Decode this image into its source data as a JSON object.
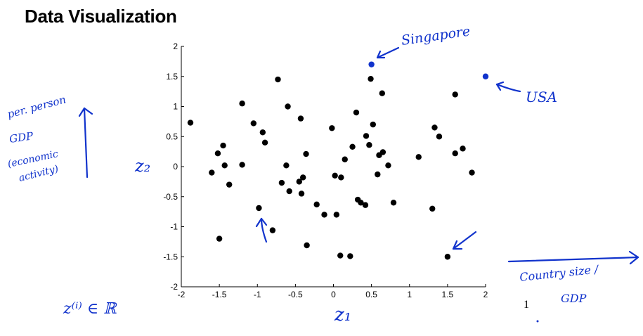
{
  "slide": {
    "title": "Data Visualization"
  },
  "chart_data": {
    "type": "scatter",
    "xlim": [
      -2,
      2
    ],
    "ylim": [
      -2,
      2
    ],
    "xticks": [
      "-2",
      "-1.5",
      "-1",
      "-0.5",
      "0",
      "0.5",
      "1",
      "1.5",
      "2"
    ],
    "yticks": [
      "2",
      "1.5",
      "1",
      "0.5",
      "0",
      "-0.5",
      "-1",
      "-1.5",
      "-2"
    ],
    "grid": false,
    "series": [
      {
        "color": "#000000",
        "points": [
          [
            -1.88,
            0.73
          ],
          [
            -1.6,
            -0.1
          ],
          [
            -1.52,
            0.22
          ],
          [
            -1.5,
            -1.2
          ],
          [
            -1.45,
            0.35
          ],
          [
            -1.43,
            0.02
          ],
          [
            -1.37,
            -0.3
          ],
          [
            -1.2,
            0.03
          ],
          [
            -1.2,
            1.05
          ],
          [
            -1.05,
            0.72
          ],
          [
            -0.98,
            -0.69
          ],
          [
            -0.93,
            0.57
          ],
          [
            -0.9,
            0.4
          ],
          [
            -0.8,
            -1.06
          ],
          [
            -0.73,
            1.45
          ],
          [
            -0.68,
            -0.27
          ],
          [
            -0.62,
            0.02
          ],
          [
            -0.6,
            1.0
          ],
          [
            -0.58,
            -0.41
          ],
          [
            -0.45,
            -0.25
          ],
          [
            -0.43,
            0.8
          ],
          [
            -0.42,
            -0.45
          ],
          [
            -0.4,
            -0.18
          ],
          [
            -0.36,
            0.21
          ],
          [
            -0.35,
            -1.31
          ],
          [
            -0.22,
            -0.63
          ],
          [
            -0.12,
            -0.8
          ],
          [
            -0.02,
            0.64
          ],
          [
            0.02,
            -0.15
          ],
          [
            0.04,
            -0.8
          ],
          [
            0.09,
            -1.48
          ],
          [
            0.1,
            -0.18
          ],
          [
            0.15,
            0.12
          ],
          [
            0.22,
            -1.49
          ],
          [
            0.25,
            0.33
          ],
          [
            0.3,
            0.9
          ],
          [
            0.32,
            -0.55
          ],
          [
            0.36,
            -0.6
          ],
          [
            0.42,
            -0.64
          ],
          [
            0.43,
            0.51
          ],
          [
            0.47,
            0.36
          ],
          [
            0.49,
            1.46
          ],
          [
            0.52,
            0.7
          ],
          [
            0.58,
            -0.13
          ],
          [
            0.6,
            0.19
          ],
          [
            0.64,
            1.22
          ],
          [
            0.65,
            0.24
          ],
          [
            0.72,
            0.02
          ],
          [
            0.79,
            -0.6
          ],
          [
            1.12,
            0.16
          ],
          [
            1.3,
            -0.7
          ],
          [
            1.33,
            0.65
          ],
          [
            1.39,
            0.5
          ],
          [
            1.5,
            -1.5
          ],
          [
            1.6,
            0.22
          ],
          [
            1.6,
            1.2
          ],
          [
            1.7,
            0.3
          ],
          [
            1.82,
            -0.1
          ]
        ]
      },
      {
        "color": "#1133cc",
        "points": [
          [
            0.5,
            1.7
          ],
          [
            2.0,
            1.5
          ]
        ]
      }
    ]
  },
  "annotations": {
    "singapore": "Singapore",
    "usa": "USA",
    "y_note_1": "per. person",
    "y_note_2": "GDP",
    "y_note_3": "(economic",
    "y_note_4": "activity)",
    "y_label": "z₂",
    "x_label": "z₁",
    "x_note_1": "Country size /",
    "x_note_2": "GDP",
    "z_domain": "z⁽ⁱ⁾ ∈ ℝ",
    "stray_number": "1"
  }
}
